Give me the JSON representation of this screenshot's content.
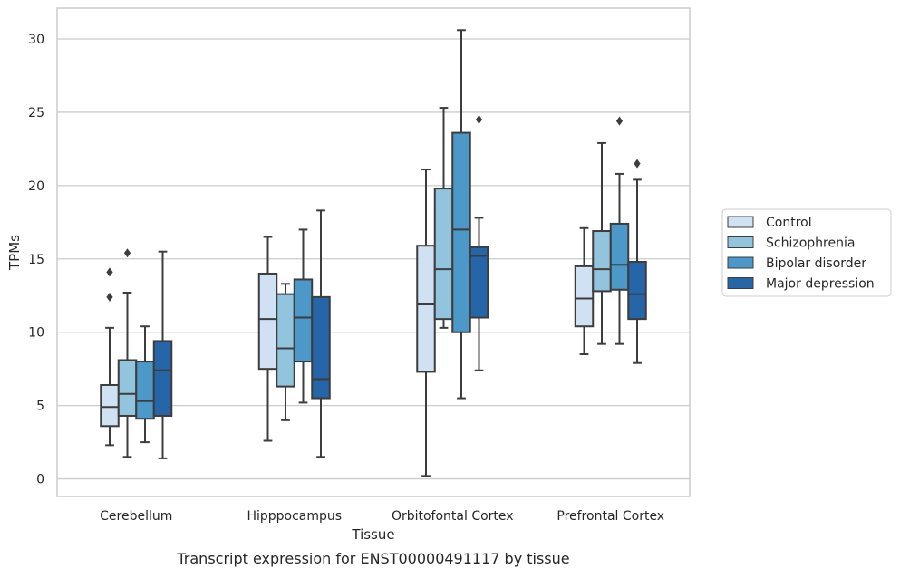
{
  "chart_data": {
    "type": "boxplot",
    "title": "Transcript expression for ENST00000491117 by tissue",
    "xlabel": "Tissue",
    "ylabel": "TPMs",
    "ylim": [
      -1.2,
      32.1
    ],
    "yticks": [
      0,
      5,
      10,
      15,
      20,
      25,
      30
    ],
    "grid": "horizontal",
    "legend_position": "right",
    "categories": [
      "Cerebellum",
      "Hipppocampus",
      "Orbitofontal Cortex",
      "Prefrontal Cortex"
    ],
    "series": [
      {
        "name": "Control",
        "color": "#cfe1f2",
        "boxes": [
          {
            "whisker_low": 2.3,
            "q1": 3.6,
            "median": 4.9,
            "q3": 6.4,
            "whisker_high": 10.3,
            "outliers": [
              12.4,
              14.1
            ]
          },
          {
            "whisker_low": 2.6,
            "q1": 7.5,
            "median": 10.9,
            "q3": 14.0,
            "whisker_high": 16.5,
            "outliers": []
          },
          {
            "whisker_low": 0.2,
            "q1": 7.3,
            "median": 11.9,
            "q3": 15.9,
            "whisker_high": 21.1,
            "outliers": []
          },
          {
            "whisker_low": 8.5,
            "q1": 10.4,
            "median": 12.3,
            "q3": 14.5,
            "whisker_high": 17.1,
            "outliers": []
          }
        ]
      },
      {
        "name": "Schizophrenia",
        "color": "#93c4de",
        "boxes": [
          {
            "whisker_low": 1.5,
            "q1": 4.3,
            "median": 5.8,
            "q3": 8.1,
            "whisker_high": 12.7,
            "outliers": [
              15.4
            ]
          },
          {
            "whisker_low": 4.0,
            "q1": 6.3,
            "median": 8.9,
            "q3": 12.6,
            "whisker_high": 13.3,
            "outliers": []
          },
          {
            "whisker_low": 10.3,
            "q1": 10.9,
            "median": 14.3,
            "q3": 19.8,
            "whisker_high": 25.3,
            "outliers": []
          },
          {
            "whisker_low": 9.2,
            "q1": 12.8,
            "median": 14.3,
            "q3": 16.9,
            "whisker_high": 22.9,
            "outliers": []
          }
        ]
      },
      {
        "name": "Bipolar disorder",
        "color": "#4b98c9",
        "boxes": [
          {
            "whisker_low": 2.5,
            "q1": 4.1,
            "median": 5.3,
            "q3": 8.0,
            "whisker_high": 10.4,
            "outliers": []
          },
          {
            "whisker_low": 5.2,
            "q1": 8.0,
            "median": 11.0,
            "q3": 13.6,
            "whisker_high": 17.0,
            "outliers": []
          },
          {
            "whisker_low": 5.5,
            "q1": 10.0,
            "median": 17.0,
            "q3": 23.6,
            "whisker_high": 30.6,
            "outliers": []
          },
          {
            "whisker_low": 9.2,
            "q1": 12.9,
            "median": 14.6,
            "q3": 17.4,
            "whisker_high": 20.8,
            "outliers": [
              24.4
            ]
          }
        ]
      },
      {
        "name": "Major depression",
        "color": "#2565a8",
        "boxes": [
          {
            "whisker_low": 1.4,
            "q1": 4.3,
            "median": 7.4,
            "q3": 9.4,
            "whisker_high": 15.5,
            "outliers": []
          },
          {
            "whisker_low": 1.5,
            "q1": 5.5,
            "median": 6.8,
            "q3": 12.4,
            "whisker_high": 18.3,
            "outliers": []
          },
          {
            "whisker_low": 7.4,
            "q1": 11.0,
            "median": 15.2,
            "q3": 15.8,
            "whisker_high": 17.8,
            "outliers": [
              24.5
            ]
          },
          {
            "whisker_low": 7.9,
            "q1": 10.9,
            "median": 12.6,
            "q3": 14.8,
            "whisker_high": 20.4,
            "outliers": [
              21.5
            ]
          }
        ]
      }
    ]
  }
}
